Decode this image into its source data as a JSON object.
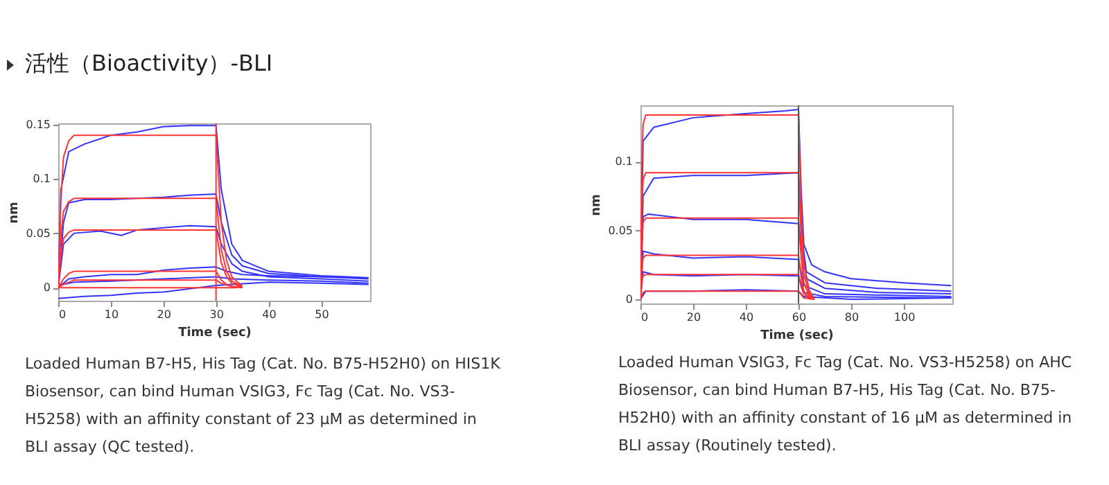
{
  "chart_data": [
    {
      "type": "line",
      "title": "活性（Bioactivity）-BLI",
      "xlabel": "Time (sec)",
      "ylabel": "nm",
      "xlim": [
        0,
        59.3
      ],
      "xticks": [
        0,
        10,
        20,
        30,
        40,
        50
      ],
      "ylim": [
        -0.012,
        0.151
      ],
      "yticks": [
        0,
        0.05,
        0.1,
        0.15
      ],
      "line_style": "solid",
      "ref_lines": [
        {
          "axis": "x",
          "value": 30,
          "color": "#ff3333"
        }
      ],
      "annotations": [
        "Loaded Human B7-H5, His Tag (Cat. No. B75-H52H0) on HIS1K Biosensor, can bind Human VSIG3, Fc Tag (Cat. No. VS3-H5258) with an affinity constant of 23 μM as determined in BLI assay (QC tested)."
      ],
      "series": [
        {
          "color": "#3333ff",
          "x": [
            0,
            0.5,
            2,
            5,
            10,
            15,
            20,
            25,
            30,
            31,
            33,
            35,
            40,
            45,
            50,
            55,
            59
          ],
          "values": [
            0,
            0.09,
            0.125,
            0.132,
            0.14,
            0.143,
            0.148,
            0.149,
            0.149,
            0.09,
            0.04,
            0.025,
            0.015,
            0.013,
            0.011,
            0.01,
            0.009
          ]
        },
        {
          "color": "#3333ff",
          "x": [
            0,
            1,
            2,
            5,
            10,
            15,
            20,
            25,
            30,
            31,
            33,
            35,
            40,
            50,
            59
          ],
          "values": [
            0,
            0.06,
            0.078,
            0.081,
            0.081,
            0.082,
            0.083,
            0.085,
            0.086,
            0.06,
            0.03,
            0.02,
            0.013,
            0.01,
            0.008
          ]
        },
        {
          "color": "#3333ff",
          "x": [
            0,
            1,
            3,
            8,
            12,
            15,
            20,
            25,
            30,
            31,
            33,
            35,
            40,
            50,
            59
          ],
          "values": [
            0,
            0.04,
            0.05,
            0.052,
            0.048,
            0.053,
            0.055,
            0.057,
            0.056,
            0.04,
            0.022,
            0.015,
            0.01,
            0.008,
            0.006
          ]
        },
        {
          "color": "#3333ff",
          "x": [
            0,
            2,
            5,
            10,
            15,
            20,
            25,
            30,
            32,
            35,
            40,
            50,
            59
          ],
          "values": [
            0,
            0.008,
            0.01,
            0.012,
            0.012,
            0.016,
            0.018,
            0.019,
            0.015,
            0.012,
            0.011,
            0.01,
            0.009
          ]
        },
        {
          "color": "#3333ff",
          "x": [
            0,
            3,
            10,
            20,
            30,
            33,
            40,
            50,
            59
          ],
          "values": [
            0.002,
            0.005,
            0.006,
            0.008,
            0.01,
            0.008,
            0.007,
            0.006,
            0.004
          ]
        },
        {
          "color": "#3333ff",
          "x": [
            0,
            5,
            10,
            15,
            20,
            25,
            30,
            33,
            40,
            50,
            59
          ],
          "values": [
            -0.01,
            -0.008,
            -0.007,
            -0.005,
            -0.004,
            -0.001,
            0.002,
            0.003,
            0.005,
            0.004,
            0.003
          ]
        },
        {
          "color": "#ff3333",
          "x": [
            0,
            0.5,
            1,
            2,
            3,
            30,
            31,
            32,
            33,
            35
          ],
          "values": [
            0,
            0.08,
            0.12,
            0.135,
            0.14,
            0.14,
            0.06,
            0.025,
            0.01,
            0.001
          ]
        },
        {
          "color": "#ff3333",
          "x": [
            0,
            0.5,
            1,
            2,
            3,
            30,
            31,
            32,
            33,
            35
          ],
          "values": [
            0,
            0.047,
            0.07,
            0.079,
            0.082,
            0.082,
            0.035,
            0.015,
            0.006,
            0.001
          ]
        },
        {
          "color": "#ff3333",
          "x": [
            0,
            0.5,
            1,
            2,
            3,
            30,
            31,
            32,
            33,
            35
          ],
          "values": [
            0,
            0.03,
            0.045,
            0.051,
            0.053,
            0.053,
            0.023,
            0.01,
            0.004,
            0
          ]
        },
        {
          "color": "#ff3333",
          "x": [
            0,
            1,
            2,
            3,
            30,
            31,
            32,
            33,
            35
          ],
          "values": [
            0,
            0.008,
            0.013,
            0.015,
            0.015,
            0.007,
            0.003,
            0.001,
            0
          ]
        },
        {
          "color": "#ff3333",
          "x": [
            0,
            1,
            2,
            3,
            30,
            31,
            33,
            35
          ],
          "values": [
            0,
            0.003,
            0.005,
            0.007,
            0.007,
            0.004,
            0.001,
            0
          ]
        },
        {
          "color": "#ff3333",
          "x": [
            0,
            30,
            34
          ],
          "values": [
            0,
            0,
            0
          ]
        }
      ]
    },
    {
      "type": "line",
      "xlabel": "Time (sec)",
      "ylabel": "nm",
      "xlim": [
        0,
        118.4
      ],
      "xticks": [
        0,
        20,
        40,
        60,
        80,
        100
      ],
      "ylim": [
        -0.003,
        0.141
      ],
      "yticks": [
        0,
        0.05,
        0.1
      ],
      "line_style": "solid",
      "ref_lines": [
        {
          "axis": "x",
          "value": 60,
          "color": "#555555"
        }
      ],
      "annotations": [
        "Loaded Human VSIG3, Fc Tag (Cat. No. VS3-H5258) on AHC Biosensor, can bind Human B7-H5, His Tag (Cat. No. B75-H52H0) with an affinity constant of 16 μM as determined in BLI assay (Routinely tested)."
      ],
      "series": [
        {
          "color": "#3333ff",
          "x": [
            0,
            1,
            5,
            20,
            40,
            55,
            60,
            61,
            62,
            65,
            70,
            80,
            100,
            118
          ],
          "values": [
            0,
            0.115,
            0.125,
            0.132,
            0.135,
            0.137,
            0.138,
            0.08,
            0.04,
            0.025,
            0.02,
            0.015,
            0.012,
            0.01
          ]
        },
        {
          "color": "#3333ff",
          "x": [
            0,
            1,
            5,
            20,
            40,
            60,
            61,
            63,
            70,
            90,
            118
          ],
          "values": [
            0,
            0.075,
            0.088,
            0.09,
            0.09,
            0.092,
            0.05,
            0.02,
            0.012,
            0.008,
            0.006
          ]
        },
        {
          "color": "#3333ff",
          "x": [
            0,
            1,
            3,
            20,
            40,
            60,
            61,
            63,
            70,
            90,
            118
          ],
          "values": [
            0,
            0.06,
            0.062,
            0.058,
            0.058,
            0.055,
            0.04,
            0.015,
            0.008,
            0.005,
            0.004
          ]
        },
        {
          "color": "#3333ff",
          "x": [
            0,
            1,
            5,
            20,
            40,
            60,
            62,
            70,
            118
          ],
          "values": [
            0,
            0.035,
            0.033,
            0.03,
            0.031,
            0.029,
            0.01,
            0.004,
            0.002
          ]
        },
        {
          "color": "#3333ff",
          "x": [
            0,
            1,
            5,
            20,
            40,
            60,
            62,
            70,
            118
          ],
          "values": [
            0,
            0.02,
            0.018,
            0.017,
            0.018,
            0.017,
            0.005,
            0.002,
            0.001
          ]
        },
        {
          "color": "#3333ff",
          "x": [
            0,
            2,
            20,
            40,
            60,
            62,
            80,
            118
          ],
          "values": [
            0,
            0.006,
            0.006,
            0.007,
            0.006,
            0.002,
            0,
            0.001
          ]
        },
        {
          "color": "#ff3333",
          "x": [
            0,
            0.5,
            1,
            2,
            60,
            61,
            62,
            64,
            66
          ],
          "values": [
            0,
            0.094,
            0.127,
            0.134,
            0.134,
            0.067,
            0.027,
            0.007,
            0
          ]
        },
        {
          "color": "#ff3333",
          "x": [
            0,
            0.5,
            1,
            2,
            60,
            61,
            62,
            64,
            66
          ],
          "values": [
            0,
            0.064,
            0.087,
            0.092,
            0.092,
            0.046,
            0.018,
            0.005,
            0
          ]
        },
        {
          "color": "#ff3333",
          "x": [
            0,
            0.5,
            1,
            2,
            60,
            61,
            62,
            64,
            66
          ],
          "values": [
            0,
            0.041,
            0.056,
            0.059,
            0.059,
            0.03,
            0.012,
            0.003,
            0
          ]
        },
        {
          "color": "#ff3333",
          "x": [
            0,
            0.5,
            1,
            2,
            60,
            61,
            62,
            64,
            66
          ],
          "values": [
            0,
            0.022,
            0.03,
            0.032,
            0.032,
            0.016,
            0.006,
            0.002,
            0
          ]
        },
        {
          "color": "#ff3333",
          "x": [
            0,
            0.5,
            1,
            2,
            60,
            61,
            62,
            64,
            66
          ],
          "values": [
            0,
            0.013,
            0.017,
            0.018,
            0.018,
            0.009,
            0.004,
            0.001,
            0
          ]
        },
        {
          "color": "#ff3333",
          "x": [
            0,
            1,
            2,
            60,
            62,
            66
          ],
          "values": [
            0,
            0.005,
            0.006,
            0.006,
            0.001,
            0
          ]
        }
      ]
    }
  ]
}
